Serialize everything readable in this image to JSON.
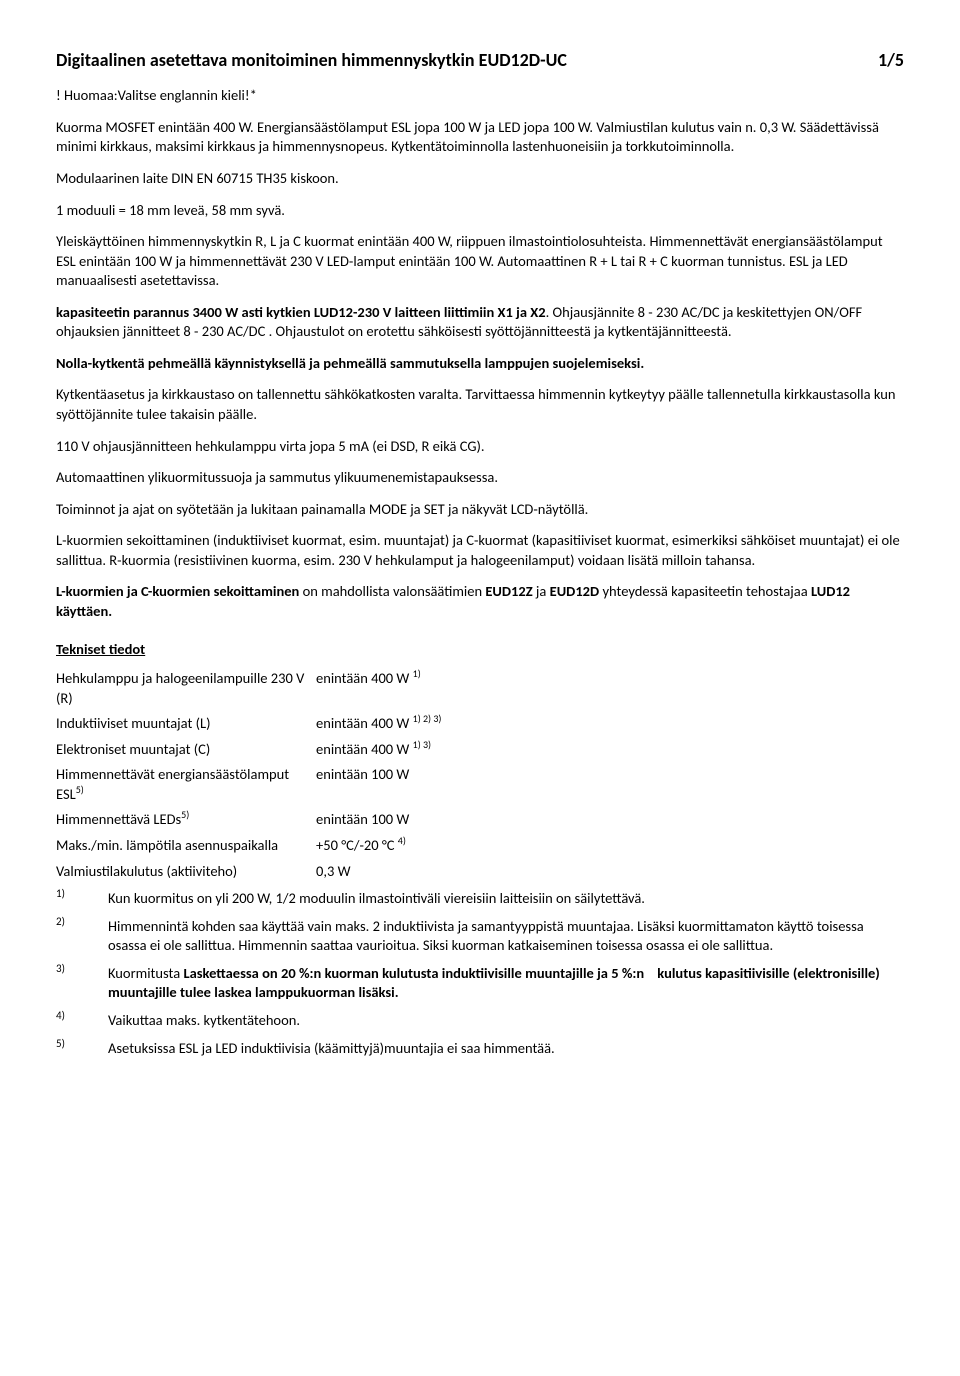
{
  "header": {
    "title": "Digitaalinen asetettava monitoiminen himmennyskytkin EUD12D-UC",
    "page": "1/5"
  },
  "paragraphs": {
    "p1": "! Huomaa:Valitse englannin kieli!*",
    "p2": "Kuorma  MOSFET enintään 400 W.  Energiansäästölamput ESL jopa 100 W ja LED jopa 100 W.  Valmiustilan kulutus vain n. 0,3 W. Säädettävissä minimi kirkkaus, maksimi kirkkaus ja himmennysnopeus. Kytkentätoiminnolla lastenhuoneisiin ja torkkutoiminnolla.",
    "p3": "Modulaarinen laite DIN EN 60715 TH35 kiskoon.",
    "p4": "1 moduuli = 18 mm leveä, 58 mm syvä.",
    "p5": "Yleiskäyttöinen himmennyskytkin R, L ja C kuormat enintään 400 W, riippuen ilmastointiolosuhteista. Himmennettävät energiansäästölamput ESL enintään 100 W ja himmennettävät 230 V LED-lamput enintään 100 W. Automaattinen R + L tai R + C kuorman tunnistus. ESL ja LED manuaalisesti asetettavissa.",
    "p6a": "kapasiteetin parannus 3400 W asti kytkien  LUD12-230 V laitteen liittimiin  X1 ja X2",
    "p6b": ".  Ohjausjännite 8 - 230 AC/DC ja keskitettyjen  ON/OFF ohjauksien jännitteet 8 - 230 AC/DC . Ohjaustulot on erotettu sähköisesti syöttöjännitteestä ja kytkentäjännitteestä.",
    "p7": "Nolla-kytkentä pehmeällä käynnistyksellä ja pehmeällä sammutuksella lamppujen suojelemiseksi.",
    "p8": "Kytkentäasetus ja kirkkaustaso on tallennettu sähkökatkosten varalta. Tarvittaessa himmennin kytkeytyy päälle tallennetulla kirkkaustasolla kun syöttöjännite tulee takaisin päälle.",
    "p9": "110 V ohjausjännitteen hehkulamppu virta jopa 5 mA (ei DSD, R eikä CG).",
    "p10": "Automaattinen ylikuormitussuoja ja sammutus ylikuumenemistapauksessa.",
    "p11": "Toiminnot ja ajat on syötetään ja lukitaan painamalla MODE ja SET ja näkyvät LCD-näytöllä.",
    "p12": "L-kuormien sekoittaminen (induktiiviset kuormat, esim. muuntajat) ja C-kuormat (kapasitiiviset kuormat, esimerkiksi sähköiset muuntajat) ei ole sallittua. R-kuormia (resistiivinen kuorma, esim. 230 V hehkulamput ja halogeenilamput) voidaan lisätä milloin tahansa.",
    "p13a": "L-kuormien ja C-kuormien sekoittaminen",
    "p13b": " on mahdollista valonsäätimien ",
    "p13c": "EUD12Z",
    "p13d": " ja ",
    "p13e": "EUD12D",
    "p13f": " yhteydessä kapasiteetin tehostajaa ",
    "p13g": "LUD12 käyttäen.",
    "tech_heading": "Tekniset tiedot"
  },
  "specs": [
    {
      "label_html": "Hehkulamppu ja halogeenilampuille 230 V (R)",
      "value_html": "enintään 400 W <sup>1)</sup>"
    },
    {
      "label_html": "Induktiiviset muuntajat (L)",
      "value_html": "enintään 400 W <sup>1) 2) 3)</sup>"
    },
    {
      "label_html": "Elektroniset muuntajat (C)",
      "value_html": "enintään 400 W <sup>1) 3)</sup>"
    },
    {
      "label_html": "Himmennettävät energiansäästölamput ESL<sup>5)</sup>",
      "value_html": "enintään 100 W"
    },
    {
      "label_html": "Himmennettävä LEDs<sup>5)</sup>",
      "value_html": "enintään 100 W"
    },
    {
      "label_html": "Maks./min. lämpötila asennuspaikalla",
      "value_html": "+50 °C/-20 °C <sup>4)</sup>"
    },
    {
      "label_html": "Valmiustilakulutus (aktiiviteho)",
      "value_html": "0,3 W"
    }
  ],
  "footnotes": [
    {
      "num": "1)",
      "text_html": "Kun kuormitus on yli 200 W, 1/2 moduulin ilmastointiväli viereisiin laitteisiin on säilytettävä."
    },
    {
      "num": "2)",
      "text_html": "Himmennintä kohden saa käyttää vain maks. 2 induktiivista ja samantyyppistä muuntajaa. Lisäksi kuormittamaton käyttö toisessa osassa ei ole sallittua. Himmennin saattaa vaurioitua. Siksi kuorman katkaiseminen toisessa osassa ei ole sallittua."
    },
    {
      "num": "3)",
      "text_html": "Kuormitusta <b>Laskettaessa on 20 %:n kuorman kulutusta induktiivisille muuntajille ja 5 %:n&nbsp;&nbsp;&nbsp;&nbsp;kulutus kapasitiivisille (elektronisille) muuntajille tulee laskea lamppukuorman lisäksi.</b>"
    },
    {
      "num": "4)",
      "text_html": "Vaikuttaa maks. kytkentätehoon."
    },
    {
      "num": "5)",
      "text_html": "Asetuksissa ESL ja LED induktiivisia (käämittyjä)muuntajia ei saa himmentää."
    }
  ]
}
